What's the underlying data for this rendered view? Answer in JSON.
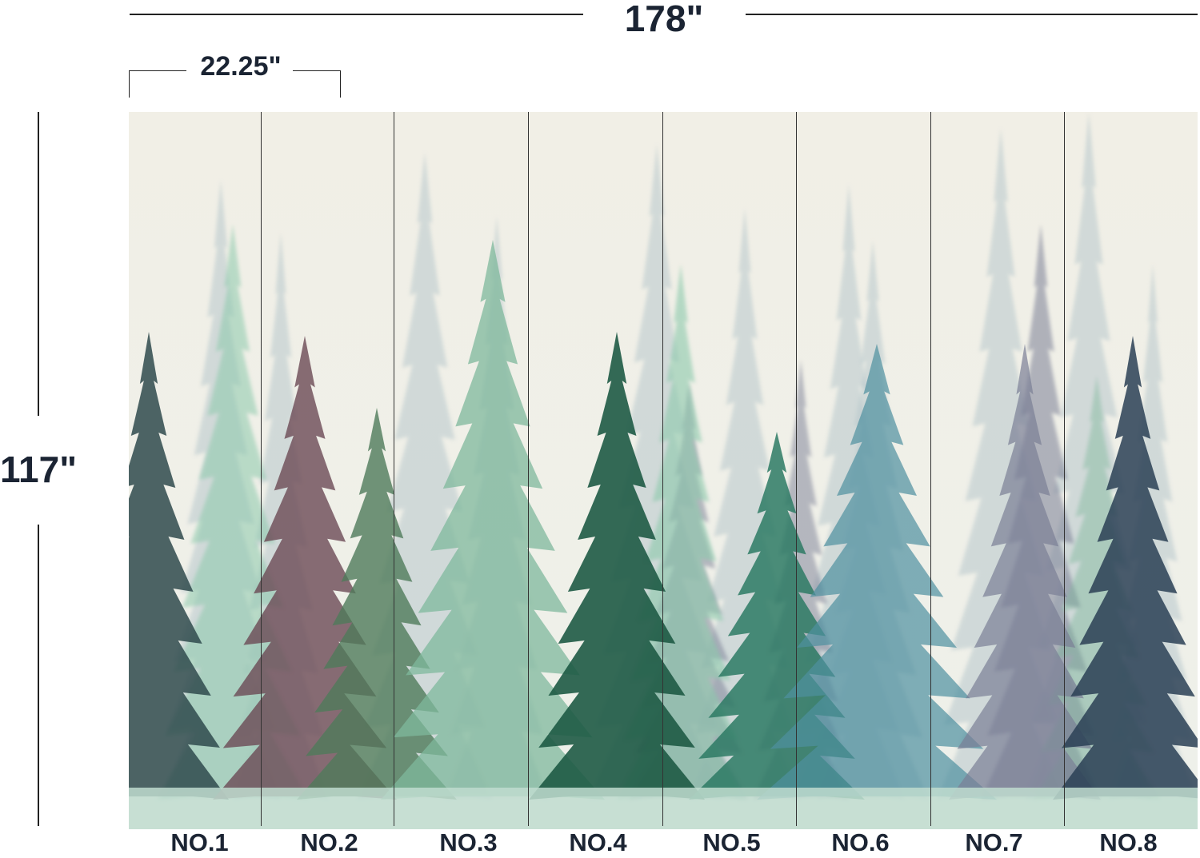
{
  "dimensions": {
    "total_width": "178\"",
    "panel_width": "22.25\"",
    "height": "117\""
  },
  "panels": [
    {
      "label": "NO.1"
    },
    {
      "label": "NO.2"
    },
    {
      "label": "NO.3"
    },
    {
      "label": "NO.4"
    },
    {
      "label": "NO.5"
    },
    {
      "label": "NO.6"
    },
    {
      "label": "NO.7"
    },
    {
      "label": "NO.8"
    }
  ],
  "colors": {
    "background": "#f1efe6",
    "text": "#1b2433",
    "tree_palette": [
      "#2f4a4c",
      "#6b4a55",
      "#4f7a5a",
      "#7fb89c",
      "#1e5a45",
      "#8cc9ac",
      "#2d7a64",
      "#4e90a0",
      "#7a7f95",
      "#2a3f55"
    ]
  }
}
